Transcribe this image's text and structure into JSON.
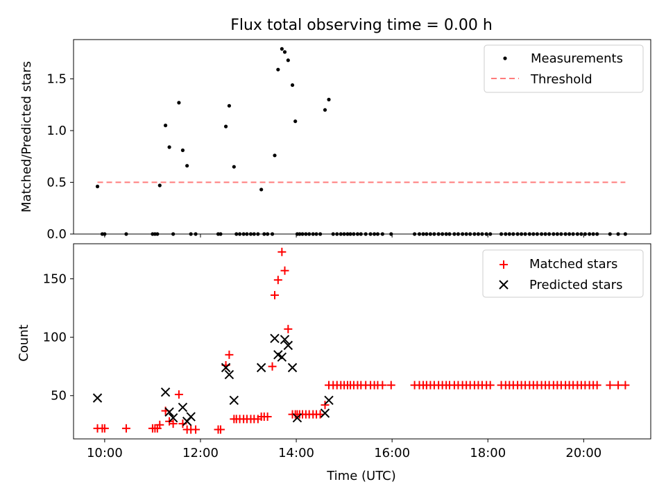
{
  "chart_data": [
    {
      "type": "scatter",
      "title": "Flux total observing time = 0.00 h",
      "xlabel": "",
      "ylabel": "Matched/Predicted stars",
      "xlim": [
        9.35,
        21.4
      ],
      "ylim": [
        0,
        1.88
      ],
      "yticks": [
        0.0,
        0.5,
        1.0,
        1.5
      ],
      "ytick_labels": [
        "0.0",
        "0.5",
        "1.0",
        "1.5"
      ],
      "legend_position": "top-right",
      "series": [
        {
          "name": "Measurements",
          "kind": "scatter",
          "color": "#000000",
          "x": [
            9.85,
            9.95,
            10.0,
            10.45,
            11.0,
            11.05,
            11.1,
            11.15,
            11.27,
            11.35,
            11.43,
            11.55,
            11.63,
            11.72,
            11.8,
            11.9,
            12.37,
            12.42,
            12.53,
            12.6,
            12.7,
            12.75,
            12.82,
            12.9,
            12.97,
            13.05,
            13.12,
            13.2,
            13.27,
            13.33,
            13.4,
            13.5,
            13.55,
            13.62,
            13.7,
            13.76,
            13.83,
            13.92,
            13.98,
            14.02,
            14.07,
            14.13,
            14.2,
            14.27,
            14.35,
            14.42,
            14.5,
            14.6,
            14.68,
            14.77,
            14.85,
            14.93,
            15.0,
            15.07,
            15.13,
            15.2,
            15.28,
            15.35,
            15.45,
            15.55,
            15.63,
            15.7,
            15.8,
            15.98,
            16.47,
            16.57,
            16.65,
            16.72,
            16.8,
            16.88,
            16.97,
            17.05,
            17.13,
            17.2,
            17.3,
            17.38,
            17.47,
            17.55,
            17.63,
            17.72,
            17.8,
            17.88,
            17.97,
            18.05,
            18.28,
            18.37,
            18.45,
            18.53,
            18.62,
            18.7,
            18.78,
            18.87,
            18.95,
            19.03,
            19.12,
            19.2,
            19.28,
            19.37,
            19.45,
            19.53,
            19.62,
            19.7,
            19.78,
            19.87,
            19.95,
            20.03,
            20.12,
            20.2,
            20.28,
            20.55,
            20.72,
            20.87
          ],
          "y": [
            0.46,
            0.0,
            0.0,
            0.0,
            0.0,
            0.0,
            0.0,
            0.47,
            1.05,
            0.84,
            0.0,
            1.27,
            0.81,
            0.66,
            0.0,
            0.0,
            0.0,
            0.0,
            1.04,
            1.24,
            0.65,
            0.0,
            0.0,
            0.0,
            0.0,
            0.0,
            0.0,
            0.0,
            0.43,
            0.0,
            0.0,
            0.0,
            0.76,
            1.59,
            1.79,
            1.76,
            1.68,
            1.44,
            1.09,
            0.0,
            0.0,
            0.0,
            0.0,
            0.0,
            0.0,
            0.0,
            0.0,
            1.2,
            1.3,
            0.0,
            0.0,
            0.0,
            0.0,
            0.0,
            0.0,
            0.0,
            0.0,
            0.0,
            0.0,
            0.0,
            0.0,
            0.0,
            0.0,
            0.0,
            0.0,
            0.0,
            0.0,
            0.0,
            0.0,
            0.0,
            0.0,
            0.0,
            0.0,
            0.0,
            0.0,
            0.0,
            0.0,
            0.0,
            0.0,
            0.0,
            0.0,
            0.0,
            0.0,
            0.0,
            0.0,
            0.0,
            0.0,
            0.0,
            0.0,
            0.0,
            0.0,
            0.0,
            0.0,
            0.0,
            0.0,
            0.0,
            0.0,
            0.0,
            0.0,
            0.0,
            0.0,
            0.0,
            0.0,
            0.0,
            0.0,
            0.0,
            0.0,
            0.0,
            0.0,
            0.0,
            0.0,
            0.0
          ]
        },
        {
          "name": "Threshold",
          "kind": "dashed-line",
          "color": "#ff7b7b",
          "x": [
            9.85,
            20.87
          ],
          "y": [
            0.5,
            0.5
          ]
        }
      ]
    },
    {
      "type": "scatter",
      "title": "",
      "xlabel": "Time (UTC)",
      "ylabel": "Count",
      "xlim": [
        9.35,
        21.4
      ],
      "ylim": [
        13,
        180
      ],
      "yticks": [
        50,
        100,
        150
      ],
      "ytick_labels": [
        "50",
        "100",
        "150"
      ],
      "xticks": [
        10,
        12,
        14,
        16,
        18,
        20
      ],
      "xtick_labels": [
        "10:00",
        "12:00",
        "14:00",
        "16:00",
        "18:00",
        "20:00"
      ],
      "legend_position": "top-right",
      "series": [
        {
          "name": "Matched stars",
          "kind": "plus",
          "color": "#ff0000",
          "x": [
            9.85,
            9.95,
            10.0,
            10.45,
            11.0,
            11.05,
            11.1,
            11.15,
            11.27,
            11.35,
            11.43,
            11.55,
            11.63,
            11.72,
            11.8,
            11.9,
            12.37,
            12.42,
            12.53,
            12.6,
            12.7,
            12.75,
            12.82,
            12.9,
            12.97,
            13.05,
            13.12,
            13.2,
            13.27,
            13.33,
            13.4,
            13.5,
            13.55,
            13.62,
            13.7,
            13.76,
            13.83,
            13.92,
            13.98,
            14.02,
            14.07,
            14.13,
            14.2,
            14.27,
            14.35,
            14.42,
            14.5,
            14.6,
            14.68,
            14.77,
            14.85,
            14.93,
            15.0,
            15.07,
            15.13,
            15.2,
            15.28,
            15.35,
            15.45,
            15.55,
            15.63,
            15.7,
            15.8,
            15.98,
            16.47,
            16.57,
            16.65,
            16.72,
            16.8,
            16.88,
            16.97,
            17.05,
            17.13,
            17.2,
            17.3,
            17.38,
            17.47,
            17.55,
            17.63,
            17.72,
            17.8,
            17.88,
            17.97,
            18.05,
            18.28,
            18.37,
            18.45,
            18.53,
            18.62,
            18.7,
            18.78,
            18.87,
            18.95,
            19.03,
            19.12,
            19.2,
            19.28,
            19.37,
            19.45,
            19.53,
            19.62,
            19.7,
            19.78,
            19.87,
            19.95,
            20.03,
            20.12,
            20.2,
            20.28,
            20.55,
            20.72,
            20.87
          ],
          "y": [
            22,
            22,
            22,
            22,
            22,
            22,
            22,
            25,
            37,
            28,
            26,
            51,
            26,
            21,
            21,
            21,
            21,
            21,
            76,
            85,
            30,
            30,
            30,
            30,
            30,
            30,
            30,
            30,
            32,
            32,
            32,
            75,
            136,
            149,
            173,
            157,
            107,
            34,
            34,
            34,
            34,
            34,
            34,
            34,
            34,
            34,
            34,
            42,
            59,
            59,
            59,
            59,
            59,
            59,
            59,
            59,
            59,
            59,
            59,
            59,
            59,
            59,
            59,
            59,
            59,
            59,
            59,
            59,
            59,
            59,
            59,
            59,
            59,
            59,
            59,
            59,
            59,
            59,
            59,
            59,
            59,
            59,
            59,
            59,
            59,
            59,
            59,
            59,
            59,
            59,
            59,
            59,
            59,
            59,
            59,
            59,
            59,
            59,
            59,
            59,
            59,
            59,
            59,
            59,
            59,
            59,
            59,
            59,
            59,
            59,
            59,
            59
          ]
        },
        {
          "name": "Predicted stars",
          "kind": "cross",
          "color": "#000000",
          "x": [
            9.85,
            11.27,
            11.35,
            11.43,
            11.63,
            11.72,
            11.8,
            12.53,
            12.6,
            12.7,
            13.27,
            13.55,
            13.62,
            13.7,
            13.76,
            13.83,
            13.92,
            14.02,
            14.6,
            14.68
          ],
          "y": [
            48,
            53,
            36,
            31,
            40,
            28,
            32,
            74,
            68,
            46,
            74,
            99,
            85,
            83,
            98,
            93,
            74,
            31,
            35,
            46
          ]
        }
      ]
    }
  ]
}
